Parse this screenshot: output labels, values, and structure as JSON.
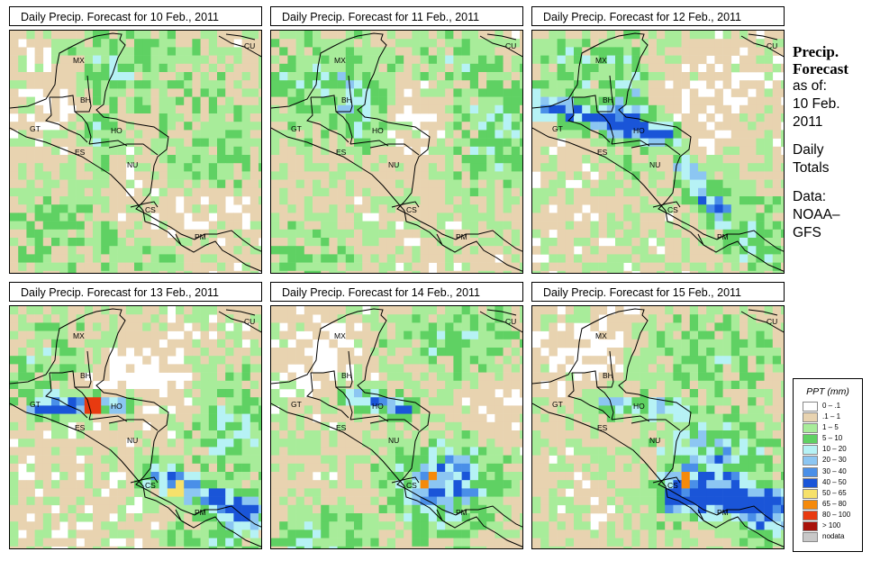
{
  "side_panel": {
    "title_line1": "Precip.",
    "title_line2": "Forecast",
    "asof": "as of:",
    "date_line1": "10 Feb.",
    "date_line2": "2011",
    "daily_line1": "Daily",
    "daily_line2": "Totals",
    "data_line1": "Data:",
    "data_line2": "NOAA–",
    "data_line3": "GFS"
  },
  "panels": [
    {
      "title": "Daily Precip. Forecast for  10 Feb., 2011"
    },
    {
      "title": "Daily Precip. Forecast for  11 Feb., 2011"
    },
    {
      "title": "Daily Precip. Forecast for  12 Feb., 2011"
    },
    {
      "title": "Daily Precip. Forecast for  13 Feb., 2011"
    },
    {
      "title": "Daily Precip. Forecast for  14 Feb., 2011"
    },
    {
      "title": "Daily Precip. Forecast for  15 Feb., 2011"
    }
  ],
  "country_labels": [
    "CU",
    "MX",
    "BH",
    "GT",
    "HO",
    "ES",
    "NU",
    "CS",
    "PM"
  ],
  "legend": {
    "title": "PPT (mm)",
    "items": [
      {
        "label": "0 – .1",
        "color": "#ffffff"
      },
      {
        "label": ".1 – 1",
        "color": "#e8d3b0"
      },
      {
        "label": "1 – 5",
        "color": "#a8ec9a"
      },
      {
        "label": "5 – 10",
        "color": "#5fd163"
      },
      {
        "label": "10 – 20",
        "color": "#b6f2f5"
      },
      {
        "label": "20 – 30",
        "color": "#8cc6f2"
      },
      {
        "label": "30 – 40",
        "color": "#4a8fe8"
      },
      {
        "label": "40 – 50",
        "color": "#1a55d8"
      },
      {
        "label": "50 – 65",
        "color": "#f6e16b"
      },
      {
        "label": "65 – 80",
        "color": "#f58a0b"
      },
      {
        "label": "80 – 100",
        "color": "#e83a10"
      },
      {
        "label": "> 100",
        "color": "#a8120a"
      },
      {
        "label": "nodata",
        "color": "#c8c8c8"
      }
    ]
  }
}
